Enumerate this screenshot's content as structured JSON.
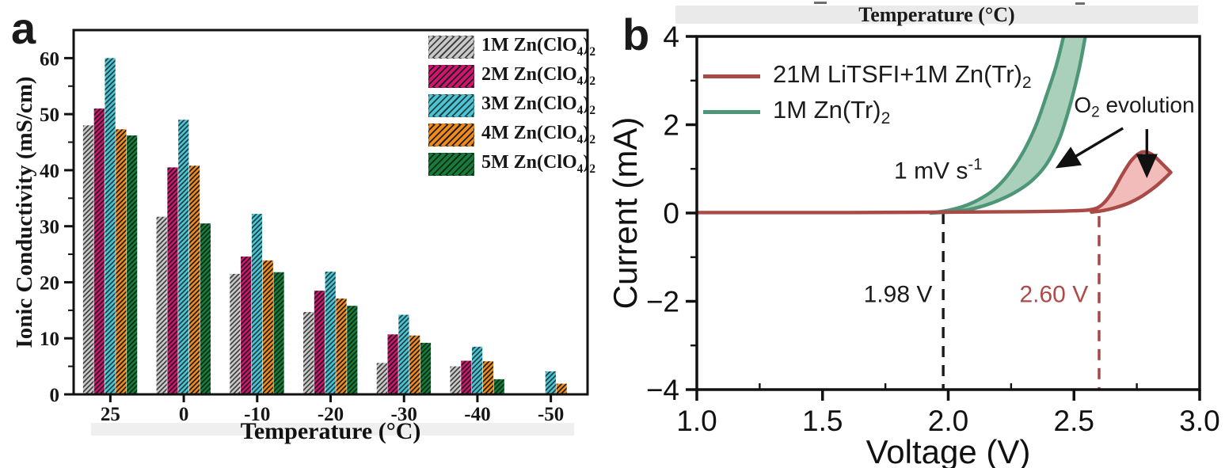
{
  "panels": {
    "a": {
      "letter": "a"
    },
    "b": {
      "letter": "b"
    }
  },
  "colors": {
    "frame": "#111111",
    "text": "#161616",
    "red_series": "#aa4a47",
    "red_fill": "#f1bcba",
    "green_series": "#4e9678",
    "green_fill": "#aacfbb",
    "red_dash": "#a34744",
    "red_label": "#b04a48"
  },
  "chart_data": [
    {
      "id": "a",
      "type": "bar",
      "xlabel": "Temperature (°C)",
      "ylabel": "Ionic Conductivity (mS/cm)",
      "categories": [
        "25",
        "0",
        "-10",
        "-20",
        "-30",
        "-40",
        "-50"
      ],
      "ylim": [
        0,
        65
      ],
      "yticks": [
        0,
        10,
        20,
        30,
        40,
        50,
        60
      ],
      "yticks_minor": [
        5,
        15,
        25,
        35,
        45,
        55
      ],
      "grid": false,
      "legend_position": "top-right",
      "series": [
        {
          "name": "1M Zn(ClO4)2",
          "label_parts": [
            "1M Zn(ClO",
            [
              "sub",
              "4"
            ],
            ")",
            [
              "sub",
              "2"
            ]
          ],
          "color": "#c9c9c9",
          "hatch": "#3f3f3f",
          "values": [
            48,
            31.7,
            21.5,
            14.7,
            5.6,
            5.0,
            0
          ]
        },
        {
          "name": "2M Zn(ClO4)2",
          "label_parts": [
            "2M Zn(ClO",
            [
              "sub",
              "4"
            ],
            ")",
            [
              "sub",
              "2"
            ]
          ],
          "color": "#d2146e",
          "hatch": "#1d1d1d",
          "values": [
            51,
            40.5,
            24.6,
            18.5,
            10.7,
            6.0,
            0
          ]
        },
        {
          "name": "3M Zn(ClO4)2",
          "label_parts": [
            "3M Zn(ClO",
            [
              "sub",
              "4"
            ],
            ")",
            [
              "sub",
              "2"
            ]
          ],
          "color": "#4ec4d2",
          "hatch": "#1d3f45",
          "values": [
            60,
            49,
            32.2,
            21.9,
            14.2,
            8.5,
            4.1
          ]
        },
        {
          "name": "4M Zn(ClO4)2",
          "label_parts": [
            "4M Zn(ClO",
            [
              "sub",
              "4"
            ],
            ")",
            [
              "sub",
              "2"
            ]
          ],
          "color": "#f08a1d",
          "hatch": "#1d1d1d",
          "values": [
            47.3,
            40.8,
            23.9,
            17.1,
            10.5,
            5.9,
            1.9
          ]
        },
        {
          "name": "5M Zn(ClO4)2",
          "label_parts": [
            "5M Zn(ClO",
            [
              "sub",
              "4"
            ],
            ")",
            [
              "sub",
              "2"
            ]
          ],
          "color": "#1b7a3b",
          "hatch": "#062d14",
          "values": [
            46.2,
            30.5,
            21.8,
            15.8,
            9.2,
            2.7,
            0
          ]
        }
      ]
    },
    {
      "id": "b",
      "type": "line",
      "top_title": "Temperature (°C)",
      "xlabel": "Voltage (V)",
      "ylabel": "Current (mA)",
      "xlim": [
        1.0,
        3.0
      ],
      "ylim": [
        -4,
        4
      ],
      "xticks": [
        {
          "v": 1.0,
          "label": "1.0"
        },
        {
          "v": 1.5,
          "label": "1.5"
        },
        {
          "v": 2.0,
          "label": "2.0"
        },
        {
          "v": 2.5,
          "label": "2.5"
        },
        {
          "v": 3.0,
          "label": "3.0"
        }
      ],
      "xticks_minor": [
        1.25,
        1.75,
        2.25,
        2.75
      ],
      "yticks": [
        {
          "v": 4,
          "label": "4"
        },
        {
          "v": 2,
          "label": "2"
        },
        {
          "v": 0,
          "label": "0"
        },
        {
          "v": -2,
          "label": "−2"
        },
        {
          "v": -4,
          "label": "−4"
        }
      ],
      "yticks_minor": [
        3,
        1,
        -1,
        -3
      ],
      "grid": false,
      "legend_position": "top-left",
      "series": [
        {
          "name": "21M LiTSFI+1M Zn(Tr)2",
          "label_parts": [
            "21M LiTSFI+1M Zn(Tr)",
            [
              "sub",
              "2"
            ]
          ],
          "color": "#aa4a47",
          "fill": "#f1bcba",
          "upper": [
            [
              1.0,
              0.01
            ],
            [
              1.6,
              0.01
            ],
            [
              2.0,
              0.02
            ],
            [
              2.3,
              0.03
            ],
            [
              2.5,
              0.05
            ],
            [
              2.57,
              0.08
            ],
            [
              2.61,
              0.18
            ],
            [
              2.65,
              0.45
            ],
            [
              2.69,
              0.85
            ],
            [
              2.73,
              1.2
            ],
            [
              2.77,
              1.38
            ],
            [
              2.81,
              1.33
            ],
            [
              2.85,
              1.12
            ],
            [
              2.885,
              0.92
            ]
          ],
          "lower": [
            [
              2.57,
              0.02
            ],
            [
              2.62,
              0.06
            ],
            [
              2.67,
              0.13
            ],
            [
              2.72,
              0.23
            ],
            [
              2.77,
              0.38
            ],
            [
              2.82,
              0.58
            ],
            [
              2.86,
              0.78
            ],
            [
              2.885,
              0.92
            ]
          ],
          "loop_start_x": 2.57
        },
        {
          "name": "1M Zn(Tr)2",
          "label_parts": [
            "1M Zn(Tr)",
            [
              "sub",
              "2"
            ]
          ],
          "color": "#4e9678",
          "fill": "#aacfbb",
          "upper": [
            [
              1.93,
              0.0
            ],
            [
              2.0,
              0.06
            ],
            [
              2.06,
              0.15
            ],
            [
              2.12,
              0.3
            ],
            [
              2.18,
              0.52
            ],
            [
              2.24,
              0.88
            ],
            [
              2.3,
              1.4
            ],
            [
              2.35,
              2.0
            ],
            [
              2.39,
              2.65
            ],
            [
              2.43,
              3.35
            ],
            [
              2.465,
              4.15
            ]
          ],
          "lower": [
            [
              1.93,
              0.0
            ],
            [
              2.02,
              0.03
            ],
            [
              2.1,
              0.1
            ],
            [
              2.18,
              0.24
            ],
            [
              2.26,
              0.45
            ],
            [
              2.33,
              0.72
            ],
            [
              2.39,
              1.1
            ],
            [
              2.44,
              1.65
            ],
            [
              2.48,
              2.35
            ],
            [
              2.52,
              3.25
            ],
            [
              2.55,
              4.15
            ]
          ]
        }
      ],
      "vlines": [
        {
          "x": 1.98,
          "y1": 0,
          "y2": -4,
          "color": "#1a1a1a"
        },
        {
          "x": 2.6,
          "y1": -0.07,
          "y2": -4,
          "color": "#a34744"
        }
      ],
      "annotations": [
        {
          "id": "scan-rate-label",
          "parts": [
            "1 mV s",
            [
              "sup",
              "-1"
            ]
          ],
          "x": 1.96,
          "y": 0.78,
          "color": "#1a1a1a",
          "size": 30
        },
        {
          "id": "onset-black-label",
          "parts": [
            "1.98 V"
          ],
          "x": 1.8,
          "y": -2.02,
          "color": "#1a1a1a",
          "size": 30
        },
        {
          "id": "onset-red-label",
          "parts": [
            "2.60 V"
          ],
          "x": 2.42,
          "y": -2.02,
          "color": "#b04a48",
          "size": 30
        },
        {
          "id": "o2-evolution-label",
          "parts": [
            "O",
            [
              "sub",
              "2"
            ],
            " evolution"
          ],
          "x": 2.74,
          "y": 2.28,
          "color": "#1a1a1a",
          "size": 28
        }
      ],
      "arrows": [
        {
          "x1": 2.695,
          "y1": 1.92,
          "x2": 2.44,
          "y2": 1.06
        },
        {
          "x1": 2.79,
          "y1": 1.9,
          "x2": 2.79,
          "y2": 0.88
        }
      ]
    }
  ]
}
